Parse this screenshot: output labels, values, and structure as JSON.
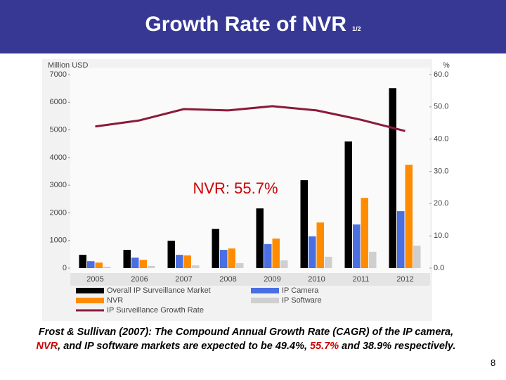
{
  "slide": {
    "title": "Growth Rate of NVR",
    "title_suffix": "1/2",
    "caption": [
      {
        "text": "Frost & Sullivan (2007): The Compound Annual Growth Rate (CAGR) of the IP camera, "
      },
      {
        "text": "NVR",
        "color": "#cc0000"
      },
      {
        "text": ", and IP software markets are expected to be 49.4%, "
      },
      {
        "text": "55.7%",
        "color": "#cc0000"
      },
      {
        "text": " and 38.9% respectively."
      }
    ],
    "page_number": "8"
  },
  "chart_data": {
    "type": "bar",
    "y_label": "Million USD",
    "y2_label": "%",
    "annotation": "NVR: 55.7%",
    "annotation_color": "#cc0000",
    "categories": [
      "2005",
      "2006",
      "2007",
      "2008",
      "2009",
      "2010",
      "2011",
      "2012"
    ],
    "series": [
      {
        "name": "Overall IP Surveillance Market",
        "color": "#000000",
        "values": [
          480,
          660,
          990,
          1420,
          2160,
          3180,
          4580,
          6510
        ]
      },
      {
        "name": "IP Camera",
        "color": "#4a6fe3",
        "values": [
          250,
          380,
          480,
          660,
          870,
          1150,
          1580,
          2060
        ]
      },
      {
        "name": "NVR",
        "color": "#ff8c00",
        "values": [
          200,
          300,
          460,
          710,
          1070,
          1650,
          2540,
          3740
        ]
      },
      {
        "name": "IP Software",
        "color": "#cfcfcf",
        "values": [
          50,
          80,
          100,
          180,
          280,
          410,
          590,
          810
        ]
      },
      {
        "name": "IP Surveillance Growth Rate",
        "color": "#8b1a3a",
        "type": "line",
        "axis": "y2",
        "values": [
          43.9,
          45.8,
          49.3,
          48.9,
          50.2,
          48.9,
          46.0,
          42.5
        ]
      }
    ],
    "ylim": [
      0,
      7000
    ],
    "yticks": [
      0,
      1000,
      2000,
      3000,
      4000,
      5000,
      6000,
      7000
    ],
    "y2lim": [
      0,
      60
    ],
    "y2ticks": [
      {
        "value": 0,
        "label": "0.0"
      },
      {
        "value": 10,
        "label": "10.0"
      },
      {
        "value": 20,
        "label": "20.0"
      },
      {
        "value": 30,
        "label": "30.0"
      },
      {
        "value": 40,
        "label": "40.0"
      },
      {
        "value": 50,
        "label": "50.0"
      },
      {
        "value": 60,
        "label": "60.0"
      }
    ],
    "grid": false
  }
}
